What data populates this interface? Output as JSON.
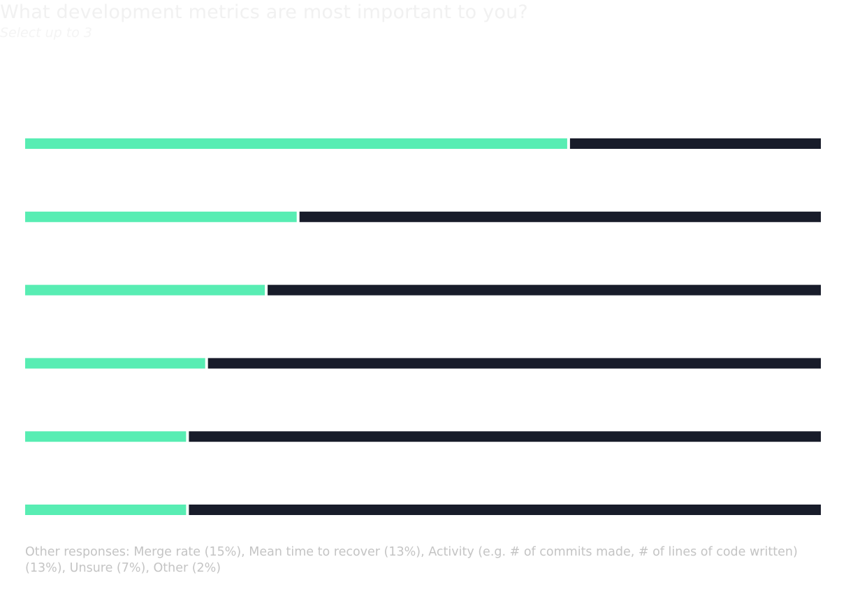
{
  "title": "What development metrics are most important to you?",
  "subtitle": "Select up to 3",
  "colors": {
    "selected": "#58edb3",
    "remainder": "#181c2a",
    "background": "#ffffff"
  },
  "chart_data": {
    "type": "bar",
    "orientation": "horizontal",
    "stacked": true,
    "categories": [
      "",
      "",
      "",
      "",
      "",
      ""
    ],
    "series": [
      {
        "values": [
          68.3,
          34.3,
          30.3,
          22.8,
          20.4,
          20.4
        ]
      },
      {
        "values": [
          31.7,
          65.7,
          69.7,
          77.2,
          79.6,
          79.6
        ]
      }
    ],
    "xlim": [
      0,
      100
    ],
    "grid": false,
    "legend": "none"
  },
  "footnote": "Other responses:  Merge rate (15%), Mean time to recover (13%), Activity (e.g. # of commits made, # of lines of code written) (13%), Unsure (7%), Other (2%)"
}
